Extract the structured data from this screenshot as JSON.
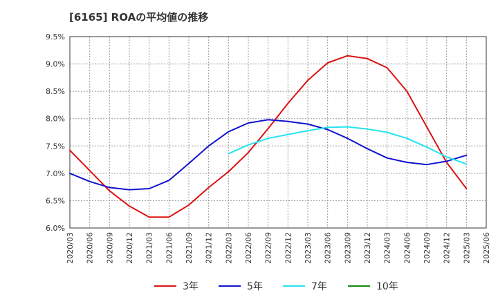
{
  "chart_data": {
    "type": "line",
    "title": "[6165]  ROAの平均値の推移",
    "xlabel": "",
    "ylabel": "",
    "x": [
      "2020/03",
      "2020/06",
      "2020/09",
      "2020/12",
      "2021/03",
      "2021/06",
      "2021/09",
      "2021/12",
      "2022/03",
      "2022/06",
      "2022/09",
      "2022/12",
      "2023/03",
      "2023/06",
      "2023/09",
      "2023/12",
      "2024/03",
      "2024/06",
      "2024/09",
      "2024/12",
      "2025/03",
      "2025/06"
    ],
    "y_ticks": [
      "6.0%",
      "6.5%",
      "7.0%",
      "7.5%",
      "8.0%",
      "8.5%",
      "9.0%",
      "9.5%"
    ],
    "ylim": [
      6.0,
      9.5
    ],
    "grid": true,
    "legend_position": "bottom",
    "series": [
      {
        "name": "3年",
        "color": "#dd1111",
        "values": [
          7.42,
          7.05,
          6.68,
          6.4,
          6.2,
          6.2,
          6.42,
          6.74,
          7.03,
          7.38,
          7.82,
          8.28,
          8.7,
          9.02,
          9.15,
          9.1,
          8.93,
          8.5,
          7.85,
          7.2,
          6.72,
          null
        ]
      },
      {
        "name": "5年",
        "color": "#1111cc",
        "values": [
          7.0,
          6.85,
          6.74,
          6.7,
          6.72,
          6.87,
          7.18,
          7.5,
          7.76,
          7.92,
          7.98,
          7.95,
          7.9,
          7.8,
          7.64,
          7.45,
          7.28,
          7.2,
          7.16,
          7.22,
          7.33,
          null
        ]
      },
      {
        "name": "7年",
        "color": "#22e5ee",
        "values": [
          null,
          null,
          null,
          null,
          null,
          null,
          null,
          null,
          7.36,
          7.52,
          7.64,
          7.71,
          7.78,
          7.84,
          7.85,
          7.81,
          7.75,
          7.64,
          7.48,
          7.3,
          7.17,
          null
        ]
      },
      {
        "name": "10年",
        "color": "#118811",
        "values": [
          null,
          null,
          null,
          null,
          null,
          null,
          null,
          null,
          null,
          null,
          null,
          null,
          null,
          null,
          null,
          null,
          null,
          null,
          null,
          null,
          null,
          null
        ]
      }
    ]
  }
}
